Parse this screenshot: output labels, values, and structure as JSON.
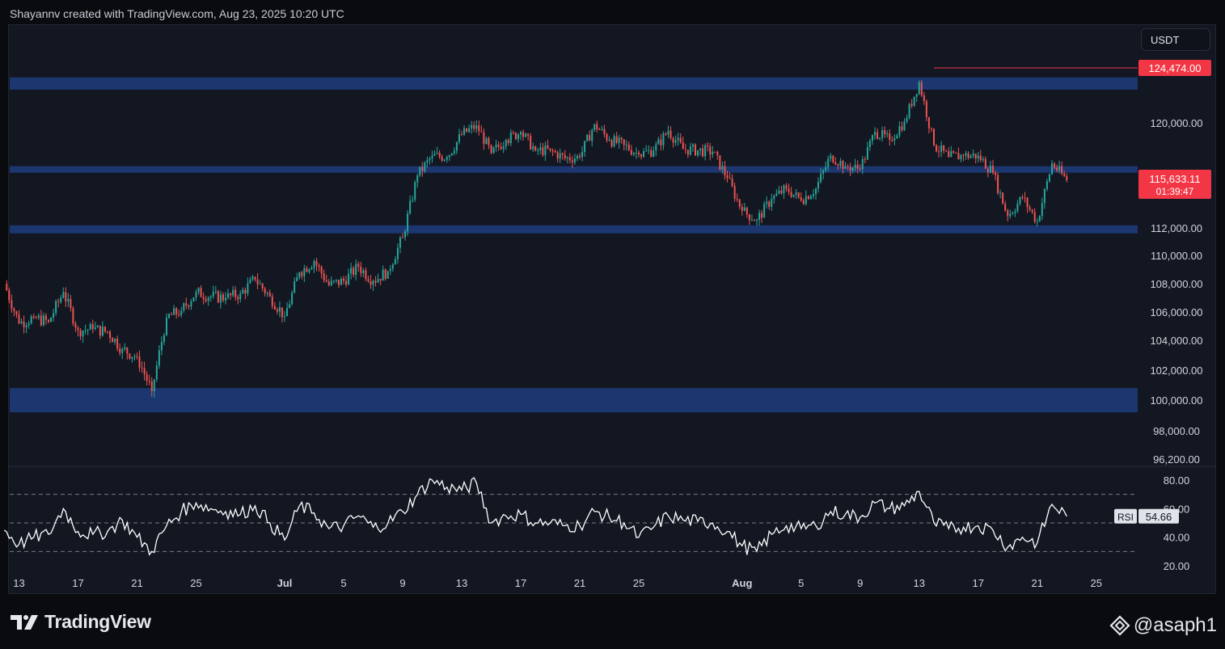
{
  "header": {
    "attribution": "Shayannv created with TradingView.com, Aug 23, 2025 10:20 UTC"
  },
  "price_scale": {
    "currency": "USDT"
  },
  "colors": {
    "background": "#131722",
    "zone": "#1e3a78",
    "up": "#26a69a",
    "down": "#ef5350",
    "rsi_line": "#ffffff",
    "price_label": "#f23645"
  },
  "footer": {
    "logo_text": "TradingView",
    "handle": "@asaph1"
  },
  "chart_data": [
    {
      "type": "candlestick",
      "title": "",
      "ylim": [
        96200,
        127000
      ],
      "y_ticks": [
        "120,000.00",
        "112,000.00",
        "110,000.00",
        "108,000.00",
        "106,000.00",
        "104,000.00",
        "102,000.00",
        "100,000.00",
        "98,000.00",
        "96,200.00"
      ],
      "y_tick_values": [
        120000,
        112000,
        110000,
        108000,
        106000,
        104000,
        102000,
        100000,
        98000,
        96200
      ],
      "x_tick_labels": [
        "13",
        "17",
        "21",
        "25",
        "Jul",
        "5",
        "9",
        "13",
        "17",
        "21",
        "25",
        "Aug",
        "5",
        "9",
        "13",
        "17",
        "21",
        "25"
      ],
      "x_tick_dates": [
        "2025-06-13",
        "2025-06-17",
        "2025-06-21",
        "2025-06-25",
        "2025-07-01",
        "2025-07-05",
        "2025-07-09",
        "2025-07-13",
        "2025-07-17",
        "2025-07-21",
        "2025-07-25",
        "2025-08-01",
        "2025-08-05",
        "2025-08-09",
        "2025-08-13",
        "2025-08-17",
        "2025-08-21",
        "2025-08-25"
      ],
      "zones": [
        {
          "from": 122700,
          "to": 123700
        },
        {
          "from": 116200,
          "to": 116700
        },
        {
          "from": 111600,
          "to": 112200
        },
        {
          "from": 99200,
          "to": 100800
        }
      ],
      "high_marker": {
        "label": "124,474.00",
        "value": 124474,
        "date": "2025-08-14"
      },
      "last_price": {
        "label": "115,633.11",
        "countdown": "01:39:47",
        "value": 115633
      },
      "series_close": [
        {
          "x": "2025-06-12",
          "y": 108000
        },
        {
          "x": "2025-06-13",
          "y": 105200
        },
        {
          "x": "2025-06-14",
          "y": 105600
        },
        {
          "x": "2025-06-15",
          "y": 105300
        },
        {
          "x": "2025-06-16",
          "y": 107400
        },
        {
          "x": "2025-06-17",
          "y": 104700
        },
        {
          "x": "2025-06-18",
          "y": 104800
        },
        {
          "x": "2025-06-19",
          "y": 104600
        },
        {
          "x": "2025-06-20",
          "y": 103400
        },
        {
          "x": "2025-06-21",
          "y": 102900
        },
        {
          "x": "2025-06-22",
          "y": 100600
        },
        {
          "x": "2025-06-23",
          "y": 105600
        },
        {
          "x": "2025-06-24",
          "y": 106100
        },
        {
          "x": "2025-06-25",
          "y": 107400
        },
        {
          "x": "2025-06-26",
          "y": 107100
        },
        {
          "x": "2025-06-27",
          "y": 107000
        },
        {
          "x": "2025-06-28",
          "y": 107300
        },
        {
          "x": "2025-06-29",
          "y": 108300
        },
        {
          "x": "2025-06-30",
          "y": 107100
        },
        {
          "x": "2025-07-01",
          "y": 105700
        },
        {
          "x": "2025-07-02",
          "y": 108800
        },
        {
          "x": "2025-07-03",
          "y": 109600
        },
        {
          "x": "2025-07-04",
          "y": 107900
        },
        {
          "x": "2025-07-05",
          "y": 108200
        },
        {
          "x": "2025-07-06",
          "y": 109200
        },
        {
          "x": "2025-07-07",
          "y": 108200
        },
        {
          "x": "2025-07-08",
          "y": 108900
        },
        {
          "x": "2025-07-09",
          "y": 111300
        },
        {
          "x": "2025-07-10",
          "y": 116000
        },
        {
          "x": "2025-07-11",
          "y": 117500
        },
        {
          "x": "2025-07-12",
          "y": 117400
        },
        {
          "x": "2025-07-13",
          "y": 119100
        },
        {
          "x": "2025-07-14",
          "y": 119800
        },
        {
          "x": "2025-07-15",
          "y": 117700
        },
        {
          "x": "2025-07-16",
          "y": 118700
        },
        {
          "x": "2025-07-17",
          "y": 119300
        },
        {
          "x": "2025-07-18",
          "y": 117900
        },
        {
          "x": "2025-07-19",
          "y": 117900
        },
        {
          "x": "2025-07-20",
          "y": 117300
        },
        {
          "x": "2025-07-21",
          "y": 117400
        },
        {
          "x": "2025-07-22",
          "y": 119900
        },
        {
          "x": "2025-07-23",
          "y": 118700
        },
        {
          "x": "2025-07-24",
          "y": 118300
        },
        {
          "x": "2025-07-25",
          "y": 117600
        },
        {
          "x": "2025-07-26",
          "y": 117900
        },
        {
          "x": "2025-07-27",
          "y": 119400
        },
        {
          "x": "2025-07-28",
          "y": 118000
        },
        {
          "x": "2025-07-29",
          "y": 117900
        },
        {
          "x": "2025-07-30",
          "y": 117800
        },
        {
          "x": "2025-07-31",
          "y": 115800
        },
        {
          "x": "2025-08-01",
          "y": 113300
        },
        {
          "x": "2025-08-02",
          "y": 112600
        },
        {
          "x": "2025-08-03",
          "y": 114200
        },
        {
          "x": "2025-08-04",
          "y": 115000
        },
        {
          "x": "2025-08-05",
          "y": 114100
        },
        {
          "x": "2025-08-06",
          "y": 115000
        },
        {
          "x": "2025-08-07",
          "y": 117500
        },
        {
          "x": "2025-08-08",
          "y": 116700
        },
        {
          "x": "2025-08-09",
          "y": 116500
        },
        {
          "x": "2025-08-10",
          "y": 119300
        },
        {
          "x": "2025-08-11",
          "y": 118700
        },
        {
          "x": "2025-08-12",
          "y": 120100
        },
        {
          "x": "2025-08-13",
          "y": 123300
        },
        {
          "x": "2025-08-14",
          "y": 118300
        },
        {
          "x": "2025-08-15",
          "y": 117400
        },
        {
          "x": "2025-08-16",
          "y": 117500
        },
        {
          "x": "2025-08-17",
          "y": 117500
        },
        {
          "x": "2025-08-18",
          "y": 116200
        },
        {
          "x": "2025-08-19",
          "y": 112900
        },
        {
          "x": "2025-08-20",
          "y": 114300
        },
        {
          "x": "2025-08-21",
          "y": 112500
        },
        {
          "x": "2025-08-22",
          "y": 116900
        },
        {
          "x": "2025-08-23",
          "y": 115633
        }
      ]
    },
    {
      "type": "line",
      "title": "RSI",
      "series": [
        {
          "name": "RSI",
          "last_value": "54.66",
          "values": [
            {
              "x": "2025-06-12",
              "y": 45
            },
            {
              "x": "2025-06-13",
              "y": 35
            },
            {
              "x": "2025-06-14",
              "y": 40
            },
            {
              "x": "2025-06-15",
              "y": 42
            },
            {
              "x": "2025-06-16",
              "y": 60
            },
            {
              "x": "2025-06-17",
              "y": 44
            },
            {
              "x": "2025-06-18",
              "y": 42
            },
            {
              "x": "2025-06-19",
              "y": 44
            },
            {
              "x": "2025-06-20",
              "y": 52
            },
            {
              "x": "2025-06-21",
              "y": 40
            },
            {
              "x": "2025-06-22",
              "y": 30
            },
            {
              "x": "2025-06-23",
              "y": 48
            },
            {
              "x": "2025-06-24",
              "y": 58
            },
            {
              "x": "2025-06-25",
              "y": 64
            },
            {
              "x": "2025-06-26",
              "y": 60
            },
            {
              "x": "2025-06-27",
              "y": 58
            },
            {
              "x": "2025-06-28",
              "y": 56
            },
            {
              "x": "2025-06-29",
              "y": 62
            },
            {
              "x": "2025-06-30",
              "y": 50
            },
            {
              "x": "2025-07-01",
              "y": 38
            },
            {
              "x": "2025-07-02",
              "y": 62
            },
            {
              "x": "2025-07-03",
              "y": 57
            },
            {
              "x": "2025-07-04",
              "y": 46
            },
            {
              "x": "2025-07-05",
              "y": 48
            },
            {
              "x": "2025-07-06",
              "y": 55
            },
            {
              "x": "2025-07-07",
              "y": 47
            },
            {
              "x": "2025-07-08",
              "y": 50
            },
            {
              "x": "2025-07-09",
              "y": 58
            },
            {
              "x": "2025-07-10",
              "y": 70
            },
            {
              "x": "2025-07-11",
              "y": 80
            },
            {
              "x": "2025-07-12",
              "y": 75
            },
            {
              "x": "2025-07-13",
              "y": 73
            },
            {
              "x": "2025-07-14",
              "y": 78
            },
            {
              "x": "2025-07-15",
              "y": 50
            },
            {
              "x": "2025-07-16",
              "y": 55
            },
            {
              "x": "2025-07-17",
              "y": 56
            },
            {
              "x": "2025-07-18",
              "y": 50
            },
            {
              "x": "2025-07-19",
              "y": 50
            },
            {
              "x": "2025-07-20",
              "y": 48
            },
            {
              "x": "2025-07-21",
              "y": 48
            },
            {
              "x": "2025-07-22",
              "y": 58
            },
            {
              "x": "2025-07-23",
              "y": 54
            },
            {
              "x": "2025-07-24",
              "y": 50
            },
            {
              "x": "2025-07-25",
              "y": 40
            },
            {
              "x": "2025-07-26",
              "y": 47
            },
            {
              "x": "2025-07-27",
              "y": 55
            },
            {
              "x": "2025-07-28",
              "y": 52
            },
            {
              "x": "2025-07-29",
              "y": 51
            },
            {
              "x": "2025-07-30",
              "y": 50
            },
            {
              "x": "2025-07-31",
              "y": 44
            },
            {
              "x": "2025-08-01",
              "y": 34
            },
            {
              "x": "2025-08-02",
              "y": 30
            },
            {
              "x": "2025-08-03",
              "y": 42
            },
            {
              "x": "2025-08-04",
              "y": 48
            },
            {
              "x": "2025-08-05",
              "y": 46
            },
            {
              "x": "2025-08-06",
              "y": 48
            },
            {
              "x": "2025-08-07",
              "y": 58
            },
            {
              "x": "2025-08-08",
              "y": 56
            },
            {
              "x": "2025-08-09",
              "y": 54
            },
            {
              "x": "2025-08-10",
              "y": 64
            },
            {
              "x": "2025-08-11",
              "y": 60
            },
            {
              "x": "2025-08-12",
              "y": 62
            },
            {
              "x": "2025-08-13",
              "y": 72
            },
            {
              "x": "2025-08-14",
              "y": 50
            },
            {
              "x": "2025-08-15",
              "y": 46
            },
            {
              "x": "2025-08-16",
              "y": 47
            },
            {
              "x": "2025-08-17",
              "y": 48
            },
            {
              "x": "2025-08-18",
              "y": 45
            },
            {
              "x": "2025-08-19",
              "y": 33
            },
            {
              "x": "2025-08-20",
              "y": 40
            },
            {
              "x": "2025-08-21",
              "y": 36
            },
            {
              "x": "2025-08-22",
              "y": 63
            },
            {
              "x": "2025-08-23",
              "y": 54.66
            }
          ]
        }
      ],
      "ylim": [
        20,
        80
      ],
      "y_ticks": [
        "80.00",
        "60.00",
        "40.00",
        "20.00"
      ],
      "y_tick_values": [
        80,
        60,
        40,
        20
      ],
      "bands": [
        30,
        50,
        70
      ]
    }
  ]
}
